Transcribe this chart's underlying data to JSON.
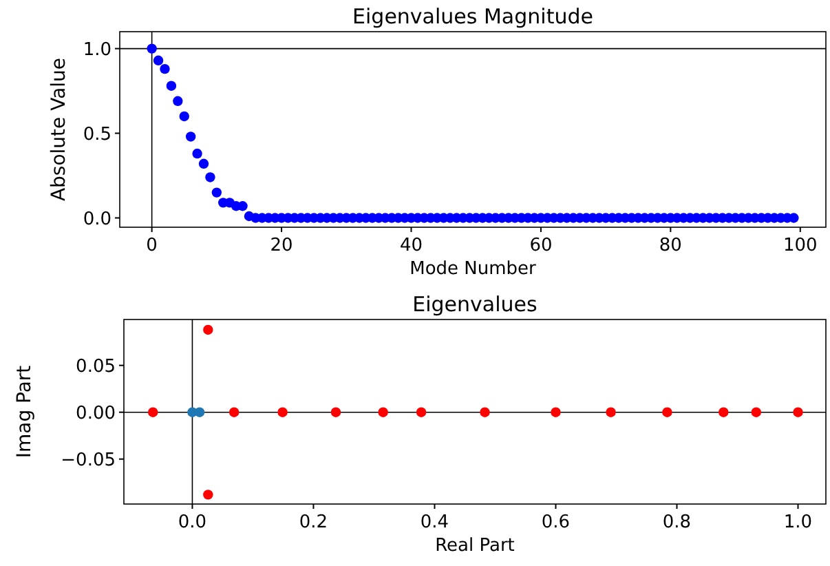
{
  "chart_data": [
    {
      "type": "scatter",
      "title": "Eigenvalues Magnitude",
      "xlabel": "Mode Number",
      "ylabel": "Absolute Value",
      "marker": "circle",
      "grid": false,
      "xlim": [
        -4.95,
        103.95
      ],
      "xticks": [
        0,
        20,
        40,
        60,
        80,
        100
      ],
      "ylim": [
        -0.055,
        1.1
      ],
      "yticks": [
        {
          "value": 0,
          "label": "0.0"
        },
        0.5,
        {
          "value": 1,
          "label": "1.0"
        }
      ],
      "ref_lines": [
        {
          "axis": "y",
          "value": 1,
          "color": "#000000"
        },
        {
          "axis": "x",
          "value": 0,
          "color": "#000000"
        }
      ],
      "series": [
        {
          "color": "#0000ff",
          "x": [
            0,
            1,
            2,
            3,
            4,
            5,
            6,
            7,
            8,
            9,
            10,
            11,
            12,
            13,
            14,
            15,
            16,
            17,
            18,
            19,
            20,
            21,
            22,
            23,
            24,
            25,
            26,
            27,
            28,
            29,
            30,
            31,
            32,
            33,
            34,
            35,
            36,
            37,
            38,
            39,
            40,
            41,
            42,
            43,
            44,
            45,
            46,
            47,
            48,
            49,
            50,
            51,
            52,
            53,
            54,
            55,
            56,
            57,
            58,
            59,
            60,
            61,
            62,
            63,
            64,
            65,
            66,
            67,
            68,
            69,
            70,
            71,
            72,
            73,
            74,
            75,
            76,
            77,
            78,
            79,
            80,
            81,
            82,
            83,
            84,
            85,
            86,
            87,
            88,
            89,
            90,
            91,
            92,
            93,
            94,
            95,
            96,
            97,
            98,
            99
          ],
          "values": [
            1,
            0.93,
            0.88,
            0.78,
            0.69,
            0.6,
            0.48,
            0.38,
            0.32,
            0.24,
            0.15,
            0.09,
            0.09,
            0.07,
            0.07,
            0.01,
            0,
            0,
            0,
            0,
            0,
            0,
            0,
            0,
            0,
            0,
            0,
            0,
            0,
            0,
            0,
            0,
            0,
            0,
            0,
            0,
            0,
            0,
            0,
            0,
            0,
            0,
            0,
            0,
            0,
            0,
            0,
            0,
            0,
            0,
            0,
            0,
            0,
            0,
            0,
            0,
            0,
            0,
            0,
            0,
            0,
            0,
            0,
            0,
            0,
            0,
            0,
            0,
            0,
            0,
            0,
            0,
            0,
            0,
            0,
            0,
            0,
            0,
            0,
            0,
            0,
            0,
            0,
            0,
            0,
            0,
            0,
            0,
            0,
            0,
            0,
            0,
            0,
            0,
            0,
            0,
            0,
            0,
            0,
            0
          ]
        }
      ]
    },
    {
      "type": "scatter",
      "title": "Eigenvalues",
      "xlabel": "Real Part",
      "ylabel": "Imag Part",
      "marker": "circle",
      "grid": false,
      "xlim": [
        -0.113,
        1.046
      ],
      "xticks": [
        {
          "value": 0,
          "label": "0.0"
        },
        {
          "value": 0.2,
          "label": "0.2"
        },
        {
          "value": 0.4,
          "label": "0.4"
        },
        {
          "value": 0.6,
          "label": "0.6"
        },
        {
          "value": 0.8,
          "label": "0.8"
        },
        {
          "value": 1,
          "label": "1.0"
        }
      ],
      "ylim": [
        -0.098,
        0.099
      ],
      "yticks": [
        {
          "value": -0.05,
          "label": "−0.05"
        },
        {
          "value": 0,
          "label": "0.00"
        },
        {
          "value": 0.05,
          "label": "0.05"
        }
      ],
      "ref_lines": [
        {
          "axis": "y",
          "value": 0,
          "color": "#000000"
        },
        {
          "axis": "x",
          "value": 0,
          "color": "#000000"
        }
      ],
      "series": [
        {
          "color": "#1f77b4",
          "x": [
            0,
            0.012
          ],
          "values": [
            0,
            0
          ]
        },
        {
          "color": "#ff0000",
          "x": [
            -0.065,
            0.026,
            0.026,
            0.069,
            0.149,
            0.237,
            0.315,
            0.378,
            0.483,
            0.6,
            0.691,
            0.784,
            0.877,
            0.931,
            1
          ],
          "values": [
            0,
            0.088,
            -0.088,
            0,
            0,
            0,
            0,
            0,
            0,
            0,
            0,
            0,
            0,
            0,
            0
          ]
        }
      ]
    }
  ]
}
